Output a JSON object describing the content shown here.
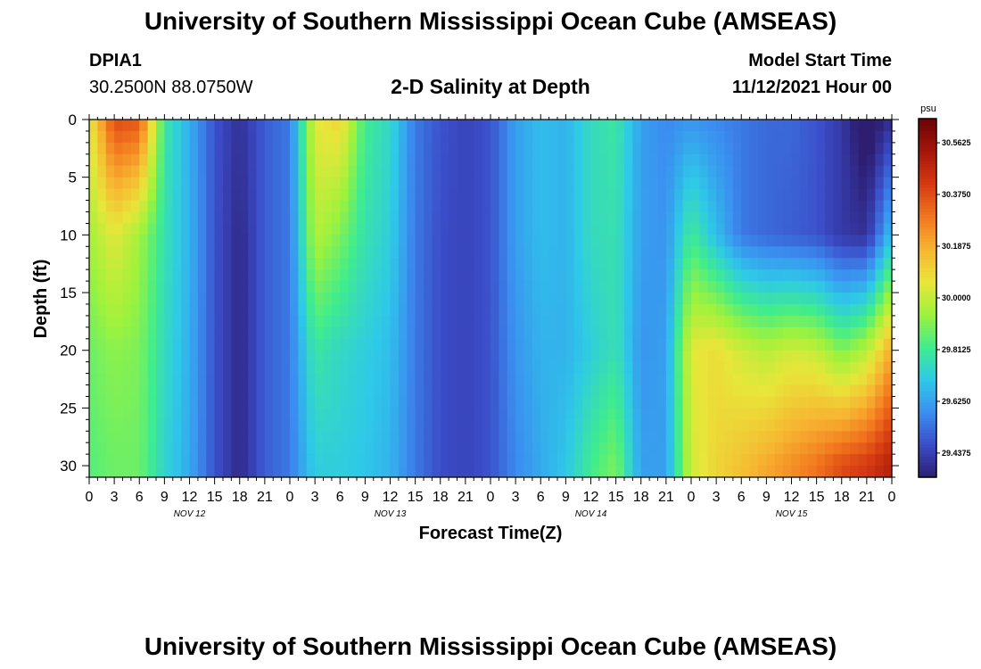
{
  "header": {
    "title": "University of Southern Mississippi Ocean Cube (AMSEAS)",
    "station_id": "DPIA1",
    "station_coords": "30.2500N  88.0750W",
    "plot_title": "2-D Salinity at Depth",
    "model_start_label": "Model Start Time",
    "model_start_value": "11/12/2021 Hour 00"
  },
  "footer": {
    "repeated_title": "University of Southern Mississippi Ocean Cube (AMSEAS)"
  },
  "colors": {
    "scale": [
      "#2d1e72",
      "#3b4cc8",
      "#3b8ef0",
      "#2ec9e8",
      "#3fec8e",
      "#9ef23c",
      "#e8e63a",
      "#f7b531",
      "#f2761e",
      "#d63a12",
      "#a5160a",
      "#6b0505"
    ]
  },
  "chart_data": {
    "type": "heatmap",
    "title": "2-D Salinity at Depth",
    "xlabel": "Forecast Time(Z)",
    "ylabel": "Depth (ft)",
    "x_tick_labels": [
      "0",
      "3",
      "6",
      "9",
      "12",
      "15",
      "18",
      "21",
      "0",
      "3",
      "6",
      "9",
      "12",
      "15",
      "18",
      "21",
      "0",
      "3",
      "6",
      "9",
      "12",
      "15",
      "18",
      "21",
      "0",
      "3",
      "6",
      "9",
      "12",
      "15",
      "18",
      "21",
      "0"
    ],
    "x_range_hours": [
      0,
      96
    ],
    "y_ticks": [
      0,
      5,
      10,
      15,
      20,
      25,
      30
    ],
    "ylim": [
      0,
      31
    ],
    "day_labels": [
      {
        "label": "NOV 12",
        "hour": 12
      },
      {
        "label": "NOV 13",
        "hour": 36
      },
      {
        "label": "NOV 14",
        "hour": 60
      },
      {
        "label": "NOV 15",
        "hour": 84
      }
    ],
    "colorbar": {
      "unit": "psu",
      "range": [
        29.35,
        30.65
      ],
      "tick_values": [
        29.4375,
        29.625,
        29.8125,
        30.0,
        30.1875,
        30.375,
        30.5625
      ],
      "tick_labels": [
        "29.4375",
        "29.6250",
        "29.8125",
        "30.0000",
        "30.1875",
        "30.3750",
        "30.5625"
      ]
    },
    "sample_depths_ft": [
      0,
      10,
      20,
      30
    ],
    "salinity_samples": {
      "hours": [
        0,
        3,
        6,
        9,
        12,
        15,
        18,
        21,
        24,
        27,
        30,
        33,
        36,
        39,
        42,
        45,
        48,
        51,
        54,
        57,
        60,
        63,
        66,
        69,
        72,
        75,
        78,
        81,
        84,
        87,
        90,
        93,
        96
      ],
      "depth_0": [
        30.05,
        30.38,
        30.36,
        29.8,
        29.65,
        29.48,
        29.4,
        29.5,
        29.55,
        30.05,
        30.1,
        29.82,
        29.75,
        29.55,
        29.48,
        29.45,
        29.48,
        29.62,
        29.68,
        29.66,
        29.76,
        29.8,
        29.62,
        29.58,
        29.6,
        29.58,
        29.55,
        29.52,
        29.52,
        29.48,
        29.42,
        29.3,
        29.4
      ],
      "depth_10": [
        29.95,
        30.05,
        29.95,
        29.78,
        29.66,
        29.48,
        29.38,
        29.5,
        29.55,
        29.98,
        29.9,
        29.78,
        29.72,
        29.55,
        29.47,
        29.45,
        29.48,
        29.62,
        29.68,
        29.66,
        29.76,
        29.78,
        29.62,
        29.6,
        29.82,
        29.68,
        29.55,
        29.52,
        29.5,
        29.48,
        29.42,
        29.4,
        29.7
      ],
      "depth_20": [
        29.88,
        29.92,
        29.9,
        29.76,
        29.65,
        29.48,
        29.38,
        29.5,
        29.55,
        29.8,
        29.75,
        29.72,
        29.68,
        29.55,
        29.47,
        29.45,
        29.48,
        29.6,
        29.66,
        29.66,
        29.72,
        29.78,
        29.6,
        29.62,
        30.05,
        30.08,
        30.02,
        29.98,
        30.02,
        30.0,
        29.9,
        29.98,
        30.2
      ],
      "depth_30": [
        29.85,
        29.88,
        29.88,
        29.74,
        29.64,
        29.48,
        29.38,
        29.5,
        29.55,
        29.72,
        29.72,
        29.7,
        29.66,
        29.55,
        29.47,
        29.45,
        29.48,
        29.58,
        29.64,
        29.7,
        29.82,
        29.9,
        29.62,
        29.62,
        30.02,
        30.1,
        30.15,
        30.2,
        30.25,
        30.3,
        30.38,
        30.42,
        30.5
      ]
    }
  }
}
